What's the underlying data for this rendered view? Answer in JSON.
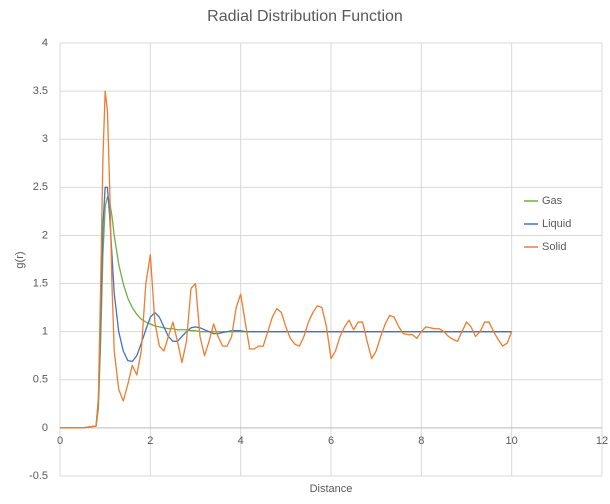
{
  "chart_data": {
    "type": "line",
    "title": "Radial Distribution Function",
    "x_label": "Distance",
    "y_label": "g(r)",
    "x": [
      0,
      0.5,
      0.8,
      0.85,
      0.9,
      0.95,
      1,
      1.05,
      1.1,
      1.15,
      1.2,
      1.3,
      1.4,
      1.5,
      1.6,
      1.7,
      1.8,
      1.9,
      2,
      2.1,
      2.2,
      2.3,
      2.4,
      2.5,
      2.6,
      2.7,
      2.8,
      2.9,
      3,
      3.1,
      3.2,
      3.3,
      3.4,
      3.5,
      3.6,
      3.7,
      3.8,
      3.9,
      4,
      4.1,
      4.2,
      4.3,
      4.4,
      4.5,
      4.6,
      4.7,
      4.8,
      4.9,
      5,
      5.1,
      5.2,
      5.3,
      5.4,
      5.5,
      5.6,
      5.7,
      5.8,
      5.9,
      6,
      6.1,
      6.2,
      6.3,
      6.4,
      6.5,
      6.6,
      6.7,
      6.8,
      6.9,
      7,
      7.1,
      7.2,
      7.3,
      7.4,
      7.5,
      7.6,
      7.7,
      7.8,
      7.9,
      8,
      8.1,
      8.2,
      8.3,
      8.4,
      8.5,
      8.6,
      8.7,
      8.8,
      8.9,
      9,
      9.1,
      9.2,
      9.3,
      9.4,
      9.5,
      9.6,
      9.7,
      9.8,
      9.9,
      10
    ],
    "series": [
      {
        "name": "Gas",
        "color": "#70ad47",
        "values": [
          0,
          0,
          0.02,
          0.2,
          0.9,
          1.8,
          2.3,
          2.4,
          2.35,
          2.2,
          2,
          1.7,
          1.5,
          1.35,
          1.25,
          1.18,
          1.13,
          1.1,
          1.08,
          1.06,
          1.05,
          1.04,
          1.03,
          1.03,
          1.02,
          1.02,
          1.02,
          1.01,
          1.01,
          1,
          1,
          1,
          1,
          1,
          1,
          1,
          1,
          1,
          1,
          1,
          1,
          1,
          1,
          1,
          1,
          1,
          1,
          1,
          1,
          1,
          1,
          1,
          1,
          1,
          1,
          1,
          1,
          1,
          1,
          1,
          1,
          1,
          1,
          1,
          1,
          1,
          1,
          1,
          1,
          1,
          1,
          1,
          1,
          1,
          1,
          1,
          1,
          1,
          1,
          1,
          1,
          1,
          1,
          1,
          1,
          1,
          1,
          1,
          1,
          1,
          1,
          1,
          1,
          1,
          1,
          1,
          1,
          1,
          1
        ]
      },
      {
        "name": "Liquid",
        "color": "#4472c4",
        "values": [
          0,
          0,
          0.02,
          0.3,
          1.2,
          2.1,
          2.5,
          2.5,
          2.2,
          1.8,
          1.4,
          1,
          0.8,
          0.7,
          0.69,
          0.75,
          0.88,
          1.02,
          1.15,
          1.2,
          1.15,
          1.05,
          0.95,
          0.9,
          0.9,
          0.95,
          1,
          1.04,
          1.05,
          1.04,
          1.02,
          1,
          0.98,
          0.98,
          0.99,
          1,
          1.01,
          1.01,
          1.01,
          1,
          1,
          1,
          1,
          1,
          1,
          1,
          1,
          1,
          1,
          1,
          1,
          1,
          1,
          1,
          1,
          1,
          1,
          1,
          1,
          1,
          1,
          1,
          1,
          1,
          1,
          1,
          1,
          1,
          1,
          1,
          1,
          1,
          1,
          1,
          1,
          1,
          1,
          1,
          1,
          1,
          1,
          1,
          1,
          1,
          1,
          1,
          1,
          1,
          1,
          1,
          1,
          1,
          1,
          1,
          1,
          1,
          1,
          1,
          1
        ]
      },
      {
        "name": "Solid",
        "color": "#ed7d31",
        "values": [
          0,
          0,
          0.02,
          0.3,
          1.5,
          2.8,
          3.5,
          3.3,
          2.5,
          1.5,
          0.8,
          0.4,
          0.28,
          0.45,
          0.65,
          0.55,
          0.8,
          1.5,
          1.8,
          1.1,
          0.85,
          0.8,
          0.95,
          1.1,
          0.9,
          0.68,
          0.9,
          1.45,
          1.5,
          0.95,
          0.75,
          0.9,
          1.08,
          0.95,
          0.85,
          0.85,
          0.95,
          1.25,
          1.39,
          1.1,
          0.82,
          0.82,
          0.85,
          0.85,
          1,
          1.15,
          1.24,
          1.2,
          1.05,
          0.93,
          0.87,
          0.85,
          0.95,
          1.1,
          1.2,
          1.27,
          1.25,
          1.05,
          0.72,
          0.8,
          0.95,
          1.05,
          1.12,
          1.02,
          1.1,
          1.1,
          0.9,
          0.72,
          0.8,
          0.95,
          1.08,
          1.17,
          1.15,
          1.05,
          0.98,
          0.97,
          0.97,
          0.93,
          1,
          1.05,
          1.04,
          1.03,
          1.03,
          1,
          0.95,
          0.92,
          0.9,
          1,
          1.1,
          1.05,
          0.95,
          1,
          1.1,
          1.1,
          1,
          0.92,
          0.85,
          0.88,
          1
        ]
      }
    ],
    "xlim": [
      0,
      12
    ],
    "xticks": [
      0,
      2,
      4,
      6,
      8,
      10,
      12
    ],
    "ylim": [
      -0.5,
      4
    ],
    "yticks": [
      -0.5,
      0,
      0.5,
      1,
      1.5,
      2,
      2.5,
      3,
      3.5,
      4
    ],
    "grid": true,
    "legend": "right"
  }
}
